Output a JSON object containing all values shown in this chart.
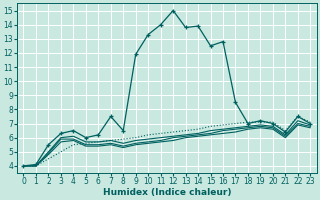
{
  "xlabel": "Humidex (Indice chaleur)",
  "bg_color": "#c8e8e0",
  "grid_color": "#ffffff",
  "line_color": "#006060",
  "xlim": [
    -0.5,
    23.5
  ],
  "ylim": [
    3.5,
    15.5
  ],
  "xticks": [
    0,
    1,
    2,
    3,
    4,
    5,
    6,
    7,
    8,
    9,
    10,
    11,
    12,
    13,
    14,
    15,
    16,
    17,
    18,
    19,
    20,
    21,
    22,
    23
  ],
  "yticks": [
    4,
    5,
    6,
    7,
    8,
    9,
    10,
    11,
    12,
    13,
    14,
    15
  ],
  "main_x": [
    0,
    1,
    2,
    3,
    4,
    5,
    6,
    7,
    8,
    9,
    10,
    11,
    12,
    13,
    14,
    15,
    16,
    17,
    18,
    19,
    20,
    21,
    22,
    23
  ],
  "main_y": [
    4.0,
    4.1,
    5.5,
    6.3,
    6.5,
    6.0,
    6.2,
    7.5,
    6.5,
    11.9,
    13.3,
    14.0,
    15.0,
    13.8,
    13.9,
    12.5,
    12.8,
    8.5,
    7.0,
    7.2,
    7.0,
    6.4,
    7.5,
    7.0
  ],
  "dot_x": [
    0,
    1,
    2,
    3,
    4,
    5,
    6,
    7,
    8,
    9,
    10,
    11,
    12,
    13,
    14,
    15,
    16,
    17,
    18,
    19,
    20,
    21,
    22,
    23
  ],
  "dot_y": [
    4.0,
    4.0,
    4.5,
    5.0,
    5.5,
    5.6,
    5.7,
    5.8,
    5.9,
    6.0,
    6.2,
    6.3,
    6.4,
    6.5,
    6.6,
    6.8,
    6.9,
    7.0,
    7.1,
    7.1,
    7.1,
    6.5,
    7.5,
    7.1
  ],
  "flat1_x": [
    0,
    1,
    2,
    3,
    4,
    5,
    6,
    7,
    8,
    9,
    10,
    11,
    12,
    13,
    14,
    15,
    16,
    17,
    18,
    19,
    20,
    21,
    22,
    23
  ],
  "flat1_y": [
    4.0,
    4.0,
    5.0,
    6.0,
    6.1,
    5.7,
    5.7,
    5.8,
    5.6,
    5.8,
    5.9,
    6.0,
    6.1,
    6.2,
    6.3,
    6.5,
    6.6,
    6.7,
    6.8,
    6.9,
    6.8,
    6.2,
    7.2,
    6.9
  ],
  "flat2_x": [
    0,
    1,
    2,
    3,
    4,
    5,
    6,
    7,
    8,
    9,
    10,
    11,
    12,
    13,
    14,
    15,
    16,
    17,
    18,
    19,
    20,
    21,
    22,
    23
  ],
  "flat2_y": [
    4.0,
    4.0,
    4.9,
    5.9,
    5.9,
    5.5,
    5.5,
    5.6,
    5.4,
    5.6,
    5.7,
    5.8,
    6.0,
    6.1,
    6.2,
    6.3,
    6.5,
    6.6,
    6.7,
    6.8,
    6.7,
    6.1,
    7.0,
    6.8
  ],
  "flat3_x": [
    0,
    1,
    2,
    3,
    4,
    5,
    6,
    7,
    8,
    9,
    10,
    11,
    12,
    13,
    14,
    15,
    16,
    17,
    18,
    19,
    20,
    21,
    22,
    23
  ],
  "flat3_y": [
    4.0,
    4.0,
    4.8,
    5.7,
    5.8,
    5.4,
    5.4,
    5.5,
    5.3,
    5.5,
    5.6,
    5.7,
    5.8,
    6.0,
    6.1,
    6.2,
    6.3,
    6.4,
    6.6,
    6.7,
    6.6,
    6.0,
    6.9,
    6.7
  ]
}
